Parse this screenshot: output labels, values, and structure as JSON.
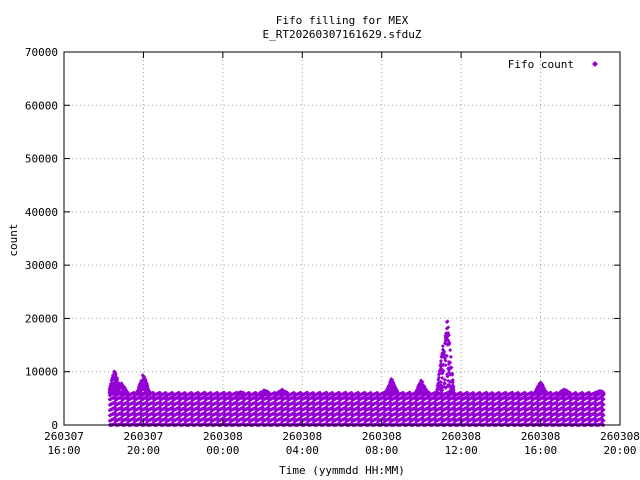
{
  "chart_data": {
    "type": "scatter",
    "title": "Fifo filling for MEX",
    "subtitle": "E_RT20260307161629.sfduZ",
    "xlabel": "Time (yymmdd HH:MM)",
    "ylabel": "count",
    "ylim": [
      0,
      70000
    ],
    "yticks": [
      0,
      10000,
      20000,
      30000,
      40000,
      50000,
      60000,
      70000
    ],
    "xlim_hours": [
      0,
      28
    ],
    "xticks": [
      {
        "hours": 0,
        "date": "260307",
        "time": "16:00"
      },
      {
        "hours": 4,
        "date": "260307",
        "time": "20:00"
      },
      {
        "hours": 8,
        "date": "260308",
        "time": "00:00"
      },
      {
        "hours": 12,
        "date": "260308",
        "time": "04:00"
      },
      {
        "hours": 16,
        "date": "260308",
        "time": "08:00"
      },
      {
        "hours": 20,
        "date": "260308",
        "time": "12:00"
      },
      {
        "hours": 24,
        "date": "260308",
        "time": "16:00"
      },
      {
        "hours": 28,
        "date": "260308",
        "time": "20:00"
      }
    ],
    "grid": true,
    "legend_position": "top-right",
    "series": [
      {
        "name": "Fifo count",
        "color": "#9400d3",
        "marker": "diamond",
        "x_range_hours": [
          2.3,
          27.2
        ],
        "sampling_interval_hours": 0.0333,
        "baseline_counts": [
          0,
          1000,
          2000,
          3000,
          4000,
          5000,
          5800
        ],
        "envelope_peaks": [
          {
            "hours": 2.55,
            "value": 10500
          },
          {
            "hours": 2.9,
            "value": 8200
          },
          {
            "hours": 4.0,
            "value": 9800
          },
          {
            "hours": 8.9,
            "value": 6200
          },
          {
            "hours": 10.1,
            "value": 6600
          },
          {
            "hours": 11.0,
            "value": 6700
          },
          {
            "hours": 13.0,
            "value": 6000
          },
          {
            "hours": 15.0,
            "value": 6000
          },
          {
            "hours": 16.5,
            "value": 8800
          },
          {
            "hours": 18.0,
            "value": 8500
          },
          {
            "hours": 19.1,
            "value": 15500
          },
          {
            "hours": 19.3,
            "value": 20500
          },
          {
            "hours": 24.0,
            "value": 8200
          },
          {
            "hours": 25.2,
            "value": 6800
          },
          {
            "hours": 27.0,
            "value": 6500
          }
        ]
      }
    ]
  }
}
